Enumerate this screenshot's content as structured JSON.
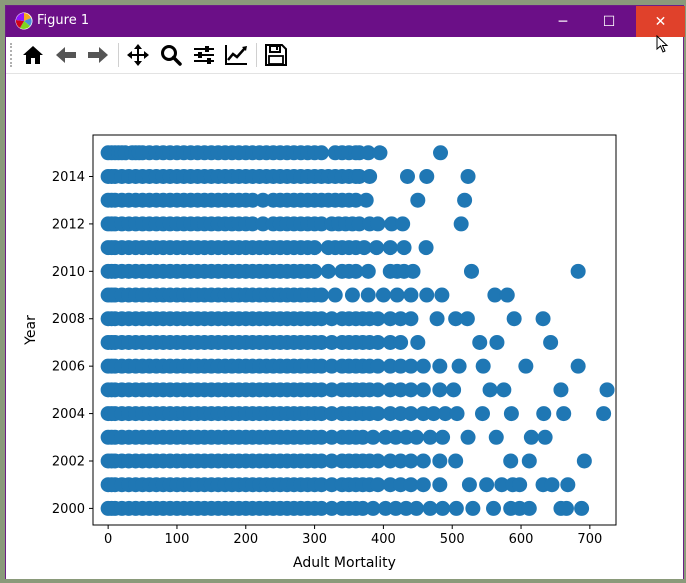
{
  "window": {
    "title": "Figure 1",
    "controls": {
      "minimize": "─",
      "maximize": "☐",
      "close": "✕"
    }
  },
  "toolbar": {
    "buttons": [
      {
        "name": "home",
        "icon": "home-icon"
      },
      {
        "name": "back",
        "icon": "arrow-left-icon"
      },
      {
        "name": "forward",
        "icon": "arrow-right-icon"
      },
      {
        "name": "pan",
        "icon": "move-icon"
      },
      {
        "name": "zoom",
        "icon": "zoom-icon"
      },
      {
        "name": "configure-subplots",
        "icon": "sliders-icon"
      },
      {
        "name": "edit-axis",
        "icon": "line-chart-icon"
      },
      {
        "name": "save",
        "icon": "floppy-disk-icon"
      }
    ]
  },
  "chart_data": {
    "type": "scatter",
    "title": "",
    "xlabel": "Adult Mortality",
    "ylabel": "Year",
    "xlim": [
      -22,
      738
    ],
    "ylim": [
      1999.3,
      2015.75
    ],
    "xticks": [
      0,
      100,
      200,
      300,
      400,
      500,
      600,
      700
    ],
    "yticks": [
      2000,
      2002,
      2004,
      2006,
      2008,
      2010,
      2012,
      2014
    ],
    "marker_color": "#1f77b4",
    "grid": false,
    "points_by_year": {
      "2015": [
        0,
        5,
        10,
        15,
        20,
        25,
        35,
        40,
        45,
        50,
        60,
        70,
        80,
        90,
        100,
        110,
        120,
        130,
        140,
        150,
        160,
        170,
        180,
        190,
        200,
        210,
        220,
        230,
        240,
        250,
        260,
        270,
        280,
        290,
        300,
        310,
        330,
        340,
        350,
        360,
        365,
        378,
        395,
        483
      ],
      "2014": [
        0,
        5,
        10,
        20,
        30,
        40,
        50,
        60,
        70,
        80,
        90,
        100,
        110,
        120,
        130,
        140,
        150,
        160,
        170,
        180,
        190,
        200,
        210,
        220,
        230,
        240,
        250,
        260,
        270,
        280,
        290,
        300,
        310,
        320,
        330,
        340,
        350,
        360,
        365,
        380,
        435,
        463,
        523
      ],
      "2013": [
        0,
        5,
        10,
        20,
        30,
        40,
        50,
        60,
        70,
        80,
        90,
        100,
        110,
        120,
        130,
        140,
        150,
        160,
        170,
        180,
        190,
        200,
        210,
        225,
        240,
        250,
        260,
        270,
        280,
        290,
        300,
        310,
        320,
        330,
        340,
        350,
        360,
        375,
        450,
        518
      ],
      "2012": [
        0,
        5,
        10,
        20,
        30,
        40,
        50,
        60,
        70,
        80,
        90,
        100,
        110,
        120,
        130,
        140,
        150,
        160,
        170,
        180,
        190,
        200,
        210,
        225,
        240,
        250,
        260,
        270,
        280,
        290,
        300,
        310,
        325,
        335,
        345,
        355,
        365,
        380,
        392,
        412,
        428,
        513
      ],
      "2011": [
        0,
        5,
        10,
        20,
        30,
        40,
        50,
        60,
        70,
        80,
        90,
        100,
        110,
        120,
        130,
        140,
        150,
        160,
        170,
        180,
        190,
        200,
        210,
        220,
        230,
        240,
        250,
        260,
        270,
        280,
        290,
        300,
        320,
        330,
        340,
        350,
        360,
        372,
        390,
        410,
        430,
        462
      ],
      "2010": [
        0,
        5,
        10,
        20,
        30,
        40,
        50,
        60,
        70,
        80,
        90,
        100,
        110,
        120,
        130,
        140,
        150,
        160,
        170,
        180,
        190,
        200,
        210,
        220,
        230,
        240,
        250,
        260,
        270,
        280,
        290,
        300,
        320,
        340,
        350,
        360,
        378,
        410,
        420,
        430,
        443,
        528,
        683
      ],
      "2009": [
        0,
        5,
        10,
        20,
        30,
        40,
        50,
        60,
        70,
        80,
        90,
        100,
        110,
        120,
        130,
        140,
        150,
        160,
        170,
        180,
        190,
        200,
        210,
        220,
        230,
        240,
        250,
        260,
        270,
        280,
        290,
        300,
        310,
        330,
        355,
        378,
        400,
        420,
        440,
        463,
        485,
        562,
        580
      ],
      "2008": [
        0,
        5,
        10,
        20,
        30,
        40,
        50,
        60,
        70,
        80,
        90,
        100,
        110,
        120,
        130,
        140,
        150,
        160,
        170,
        180,
        190,
        200,
        210,
        220,
        230,
        240,
        250,
        260,
        270,
        280,
        290,
        300,
        310,
        325,
        340,
        350,
        360,
        370,
        380,
        392,
        410,
        425,
        440,
        478,
        505,
        522,
        590,
        632
      ],
      "2007": [
        0,
        5,
        10,
        20,
        30,
        40,
        50,
        60,
        70,
        80,
        90,
        100,
        110,
        120,
        130,
        140,
        150,
        160,
        170,
        180,
        190,
        200,
        210,
        220,
        230,
        240,
        250,
        260,
        270,
        280,
        290,
        300,
        310,
        325,
        340,
        350,
        360,
        370,
        380,
        392,
        410,
        425,
        450,
        540,
        565,
        643
      ],
      "2006": [
        0,
        5,
        10,
        20,
        30,
        40,
        50,
        60,
        70,
        80,
        90,
        100,
        110,
        120,
        130,
        140,
        150,
        160,
        170,
        180,
        190,
        200,
        210,
        220,
        230,
        240,
        250,
        260,
        270,
        280,
        290,
        300,
        310,
        325,
        340,
        350,
        360,
        370,
        380,
        392,
        410,
        425,
        440,
        458,
        482,
        510,
        545,
        607,
        683
      ],
      "2005": [
        0,
        5,
        10,
        20,
        30,
        40,
        50,
        60,
        70,
        80,
        90,
        100,
        110,
        120,
        130,
        140,
        150,
        160,
        170,
        180,
        190,
        200,
        210,
        220,
        230,
        240,
        250,
        260,
        270,
        280,
        290,
        300,
        310,
        325,
        340,
        350,
        360,
        370,
        380,
        392,
        410,
        425,
        440,
        458,
        482,
        502,
        555,
        575,
        658,
        725
      ],
      "2004": [
        0,
        5,
        10,
        20,
        30,
        40,
        50,
        60,
        70,
        80,
        90,
        100,
        110,
        120,
        130,
        140,
        150,
        160,
        170,
        180,
        190,
        200,
        210,
        220,
        230,
        240,
        250,
        260,
        270,
        280,
        290,
        300,
        310,
        325,
        340,
        350,
        360,
        370,
        380,
        392,
        410,
        425,
        440,
        458,
        473,
        490,
        507,
        544,
        586,
        633,
        662,
        720
      ],
      "2003": [
        0,
        5,
        10,
        20,
        30,
        40,
        50,
        60,
        70,
        80,
        90,
        100,
        110,
        120,
        130,
        140,
        150,
        160,
        170,
        180,
        190,
        200,
        210,
        220,
        230,
        240,
        250,
        260,
        270,
        280,
        290,
        300,
        310,
        325,
        340,
        350,
        360,
        370,
        385,
        403,
        418,
        433,
        448,
        468,
        486,
        523,
        564,
        615,
        635
      ],
      "2002": [
        0,
        5,
        10,
        20,
        30,
        40,
        50,
        60,
        70,
        80,
        90,
        100,
        110,
        120,
        130,
        140,
        150,
        160,
        170,
        180,
        190,
        200,
        210,
        220,
        230,
        240,
        250,
        260,
        270,
        280,
        290,
        300,
        310,
        325,
        340,
        350,
        360,
        370,
        380,
        392,
        410,
        425,
        440,
        458,
        482,
        505,
        585,
        612,
        692
      ],
      "2001": [
        0,
        5,
        10,
        20,
        30,
        40,
        50,
        60,
        70,
        80,
        90,
        100,
        110,
        120,
        130,
        140,
        150,
        160,
        170,
        180,
        190,
        200,
        210,
        220,
        230,
        240,
        250,
        260,
        270,
        280,
        290,
        300,
        310,
        325,
        340,
        350,
        360,
        370,
        380,
        392,
        410,
        425,
        440,
        458,
        482,
        525,
        550,
        572,
        588,
        598,
        632,
        645,
        668
      ],
      "2000": [
        0,
        5,
        10,
        20,
        30,
        40,
        50,
        60,
        70,
        80,
        90,
        100,
        110,
        120,
        130,
        140,
        150,
        160,
        170,
        180,
        190,
        200,
        210,
        220,
        230,
        240,
        250,
        260,
        270,
        280,
        290,
        300,
        310,
        325,
        340,
        350,
        360,
        370,
        385,
        403,
        418,
        433,
        448,
        468,
        486,
        506,
        530,
        560,
        585,
        598,
        612,
        658,
        666,
        688
      ]
    }
  }
}
